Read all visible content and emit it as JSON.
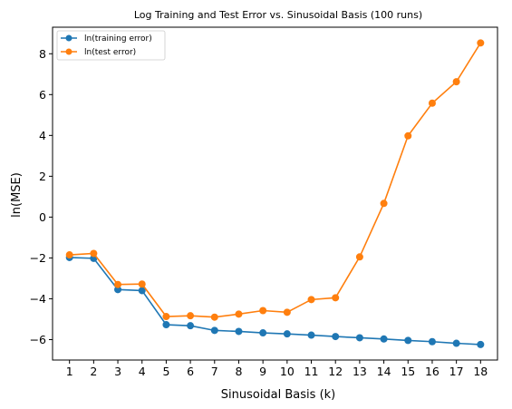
{
  "chart_data": {
    "type": "line",
    "title": "Log Training and Test Error vs. Sinusoidal Basis (100 runs)",
    "xlabel": "Sinusoidal Basis (k)",
    "ylabel": "ln(MSE)",
    "x": [
      1,
      2,
      3,
      4,
      5,
      6,
      7,
      8,
      9,
      10,
      11,
      12,
      13,
      14,
      15,
      16,
      17,
      18
    ],
    "xticks": [
      "1",
      "2",
      "3",
      "4",
      "5",
      "6",
      "7",
      "8",
      "9",
      "10",
      "11",
      "12",
      "13",
      "14",
      "15",
      "16",
      "17",
      "18"
    ],
    "yticks": [
      "−6",
      "−4",
      "−2",
      "0",
      "2",
      "4",
      "6",
      "8"
    ],
    "ytick_values": [
      -6,
      -4,
      -2,
      0,
      2,
      4,
      6,
      8
    ],
    "xlim": [
      0.3,
      18.7
    ],
    "ylim": [
      -7.0,
      9.3
    ],
    "grid": false,
    "legend_position": "top-left",
    "series": [
      {
        "name": "ln(training error)",
        "color": "#1f77b4",
        "values": [
          -1.98,
          -2.02,
          -3.55,
          -3.6,
          -5.27,
          -5.32,
          -5.55,
          -5.6,
          -5.67,
          -5.72,
          -5.78,
          -5.85,
          -5.91,
          -5.97,
          -6.04,
          -6.1,
          -6.18,
          -6.24
        ]
      },
      {
        "name": "ln(test error)",
        "color": "#ff7f0e",
        "values": [
          -1.85,
          -1.78,
          -3.3,
          -3.28,
          -4.87,
          -4.83,
          -4.9,
          -4.75,
          -4.58,
          -4.66,
          -4.04,
          -3.95,
          -1.95,
          0.67,
          3.98,
          5.58,
          6.63,
          8.53
        ]
      }
    ]
  }
}
